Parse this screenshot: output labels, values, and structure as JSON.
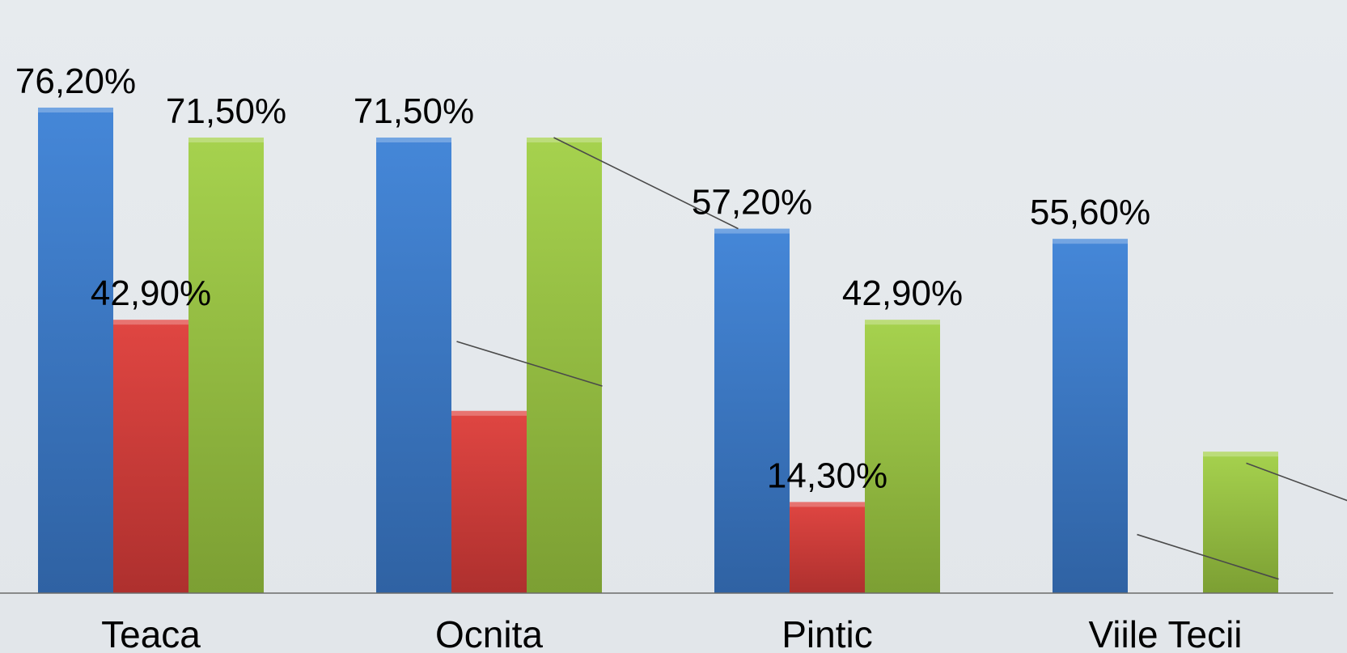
{
  "chart_data": {
    "type": "bar",
    "categories": [
      "Teaca",
      "Ocnita",
      "Pintic",
      "Viile Tecii"
    ],
    "series": [
      {
        "color": "#3d7fd0",
        "values": [
          76.2,
          71.5,
          57.2,
          55.6
        ]
      },
      {
        "color": "#d63c3a",
        "values": [
          42.9,
          28.6,
          14.3,
          0
        ]
      },
      {
        "color": "#96bd3e",
        "values": [
          71.5,
          71.5,
          42.9,
          22.2
        ]
      }
    ],
    "labels": [
      [
        "76,20%",
        "71,50%",
        "57,20%",
        "55,60%"
      ],
      [
        "42,90%",
        "",
        "14,30%",
        ""
      ],
      [
        "71,50%",
        "",
        "42,90%",
        ""
      ]
    ],
    "value_scale_note": "ylim in percent",
    "ylim": [
      0,
      84.2
    ],
    "grid": false,
    "legend": "none",
    "trendlines": [
      {
        "from": [
          1,
          71.5
        ],
        "to": [
          2,
          57.2
        ]
      },
      {
        "from": [
          1,
          39.5
        ],
        "to": [
          1,
          32.5
        ]
      },
      {
        "from": [
          3,
          9.2
        ],
        "to": [
          3,
          2.2
        ]
      },
      {
        "from": [
          3,
          20.4
        ],
        "to": [
          3.6,
          13.3
        ]
      }
    ]
  }
}
